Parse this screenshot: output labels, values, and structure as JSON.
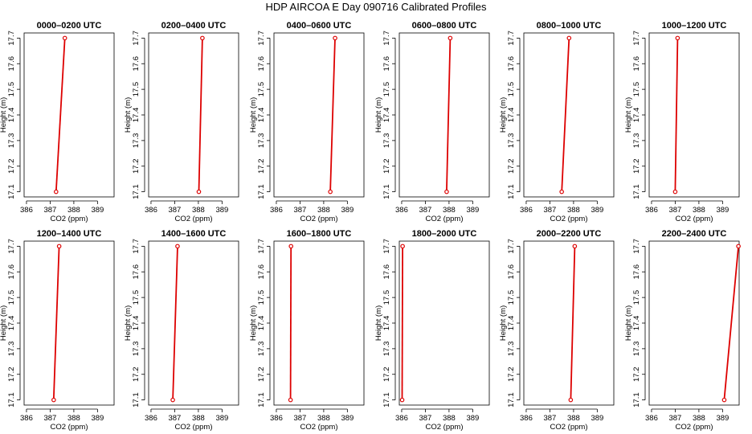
{
  "title": "HDP AIRCOA E  Day 090716  Calibrated Profiles",
  "chart_data": {
    "type": "line",
    "colors": {
      "line": "#dd0000",
      "frame": "#000000"
    },
    "xlabel": "CO2 (ppm)",
    "ylabel": "Height (m)",
    "xlim": [
      385.9,
      389.7
    ],
    "ylim": [
      17.08,
      17.72
    ],
    "x_ticks": [
      386,
      387,
      388,
      389
    ],
    "y_ticks": [
      "17.1",
      "17.2",
      "17.3",
      "17.4",
      "17.5",
      "17.6",
      "17.7"
    ],
    "panels": [
      {
        "title": "0000–0200 UTC",
        "x": [
          387.25,
          387.62
        ],
        "y": [
          17.1,
          17.7
        ]
      },
      {
        "title": "0200–0400 UTC",
        "x": [
          388.02,
          388.17
        ],
        "y": [
          17.1,
          17.7
        ]
      },
      {
        "title": "0400–0600 UTC",
        "x": [
          388.28,
          388.48
        ],
        "y": [
          17.1,
          17.7
        ]
      },
      {
        "title": "0600–0800 UTC",
        "x": [
          387.9,
          388.05
        ],
        "y": [
          17.1,
          17.7
        ]
      },
      {
        "title": "0800–1000 UTC",
        "x": [
          387.5,
          387.81
        ],
        "y": [
          17.1,
          17.7
        ]
      },
      {
        "title": "1000–1200 UTC",
        "x": [
          387.0,
          387.1
        ],
        "y": [
          17.1,
          17.7
        ]
      },
      {
        "title": "1200–1400 UTC",
        "x": [
          387.15,
          387.38
        ],
        "y": [
          17.1,
          17.7
        ]
      },
      {
        "title": "1400–1600 UTC",
        "x": [
          386.92,
          387.12
        ],
        "y": [
          17.1,
          17.7
        ]
      },
      {
        "title": "1600–1800 UTC",
        "x": [
          386.6,
          386.62
        ],
        "y": [
          17.1,
          17.7
        ]
      },
      {
        "title": "1800–2000 UTC",
        "x": [
          386.02,
          386.04
        ],
        "y": [
          17.1,
          17.7
        ]
      },
      {
        "title": "2000–2200 UTC",
        "x": [
          387.88,
          388.05
        ],
        "y": [
          17.1,
          17.7
        ]
      },
      {
        "title": "2200–2400 UTC",
        "x": [
          389.07,
          389.67
        ],
        "y": [
          17.1,
          17.7
        ]
      }
    ]
  }
}
